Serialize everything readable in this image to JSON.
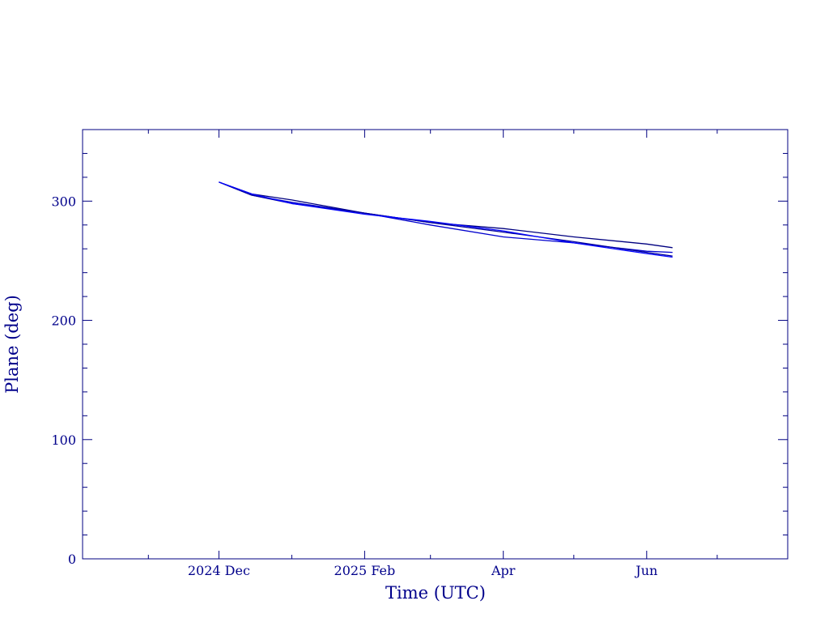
{
  "chart_data": {
    "type": "line",
    "title": "",
    "xlabel": "Time (UTC)",
    "ylabel": "Plane (deg)",
    "xlim": [
      "2024-10-04",
      "2025-07-31"
    ],
    "ylim": [
      0,
      360
    ],
    "x_ticks": [
      {
        "date": "2024-12-01",
        "label": "2024 Dec"
      },
      {
        "date": "2025-02-01",
        "label": "2025 Feb"
      },
      {
        "date": "2025-04-01",
        "label": "Apr"
      },
      {
        "date": "2025-06-01",
        "label": "Jun"
      }
    ],
    "x_minor_ticks": [
      "2024-11-01",
      "2025-01-01",
      "2025-03-01",
      "2025-05-01",
      "2025-07-01"
    ],
    "y_ticks": [
      0,
      100,
      200,
      300
    ],
    "y_minor_step": 20,
    "grid": false,
    "legend": "none",
    "colors": {
      "frame": "#000080",
      "text": "#00008b",
      "series": [
        "#000080",
        "#0000cd",
        "#000099",
        "#0000ff"
      ]
    },
    "series": [
      {
        "x": [
          "2024-12-01",
          "2024-12-15",
          "2025-01-01",
          "2025-02-01",
          "2025-03-01",
          "2025-04-01",
          "2025-05-01",
          "2025-06-01",
          "2025-06-12"
        ],
        "y": [
          316,
          306,
          301,
          290,
          282,
          277,
          270,
          264,
          261
        ]
      },
      {
        "x": [
          "2024-12-01",
          "2024-12-15",
          "2025-01-01",
          "2025-02-01",
          "2025-03-01",
          "2025-04-01",
          "2025-05-01",
          "2025-06-01",
          "2025-06-12"
        ],
        "y": [
          316,
          305,
          299,
          290,
          280,
          270,
          265,
          258,
          257
        ]
      },
      {
        "x": [
          "2024-12-01",
          "2024-12-15",
          "2025-01-01",
          "2025-02-01",
          "2025-03-01",
          "2025-04-01",
          "2025-05-01",
          "2025-06-01",
          "2025-06-12"
        ],
        "y": [
          316,
          305,
          298,
          290,
          282,
          274,
          266,
          257,
          254
        ]
      },
      {
        "x": [
          "2024-12-01",
          "2024-12-15",
          "2025-01-01",
          "2025-02-01",
          "2025-03-01",
          "2025-04-01",
          "2025-05-01",
          "2025-06-01",
          "2025-06-12"
        ],
        "y": [
          316,
          306,
          298,
          289,
          283,
          275,
          265,
          256,
          253
        ]
      }
    ]
  }
}
